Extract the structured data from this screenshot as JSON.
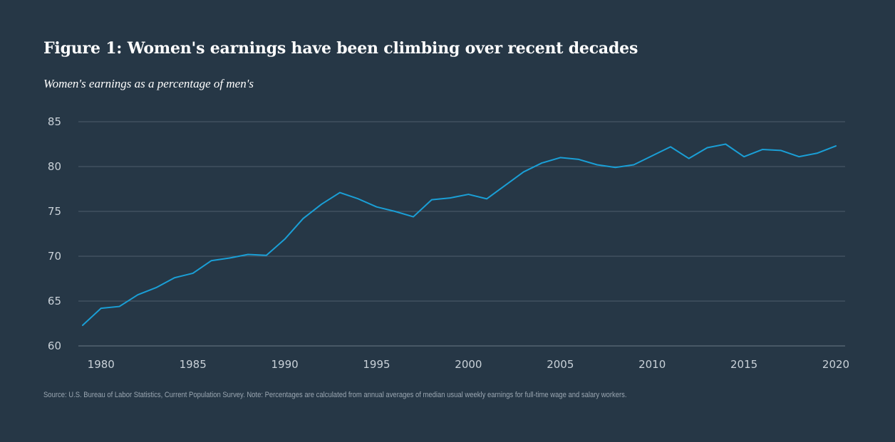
{
  "title": "Figure 1: Women's earnings have been climbing over recent decades",
  "subtitle": "Women's earnings as a percentage of men's",
  "source": "Source: U.S. Bureau of Labor Statistics, Current Population Survey. Note: Percentages are calculated from annual averages of median usual weekly earnings for full-time wage and salary workers.",
  "colors": {
    "background": "#263746",
    "line": "#1a9fd6",
    "grid": "#4d5e6c",
    "tick": "#c9d1d8"
  },
  "chart_data": {
    "type": "line",
    "title": "Figure 1: Women's earnings have been climbing over recent decades",
    "subtitle": "Women's earnings as a percentage of men's",
    "xlabel": "",
    "ylabel": "",
    "xlim": [
      1979,
      2020
    ],
    "ylim": [
      60,
      85
    ],
    "xticks": [
      1980,
      1985,
      1990,
      1995,
      2000,
      2005,
      2010,
      2015,
      2020
    ],
    "yticks": [
      60,
      65,
      70,
      75,
      80,
      85
    ],
    "grid": true,
    "series": [
      {
        "name": "Women's earnings as a percentage of men's",
        "x": [
          1979,
          1980,
          1981,
          1982,
          1983,
          1984,
          1985,
          1986,
          1987,
          1988,
          1989,
          1990,
          1991,
          1992,
          1993,
          1994,
          1995,
          1996,
          1997,
          1998,
          1999,
          2000,
          2001,
          2002,
          2003,
          2004,
          2005,
          2006,
          2007,
          2008,
          2009,
          2010,
          2011,
          2012,
          2013,
          2014,
          2015,
          2016,
          2017,
          2018,
          2019,
          2020
        ],
        "values": [
          62.3,
          64.2,
          64.4,
          65.7,
          66.5,
          67.6,
          68.1,
          69.5,
          69.8,
          70.2,
          70.1,
          71.9,
          74.2,
          75.8,
          77.1,
          76.4,
          75.5,
          75.0,
          74.4,
          76.3,
          76.5,
          76.9,
          76.4,
          77.9,
          79.4,
          80.4,
          81.0,
          80.8,
          80.2,
          79.9,
          80.2,
          81.2,
          82.2,
          80.9,
          82.1,
          82.5,
          81.1,
          81.9,
          81.8,
          81.1,
          81.5,
          82.3
        ]
      }
    ]
  }
}
